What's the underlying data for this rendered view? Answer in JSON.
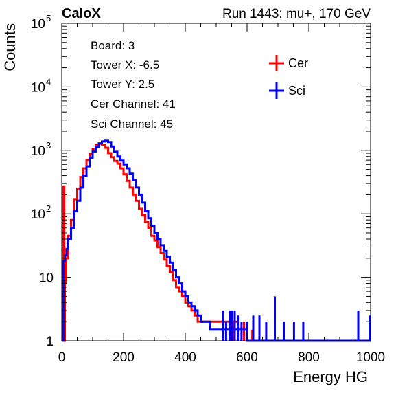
{
  "chart_data": {
    "type": "line",
    "title_left": "CaloX",
    "title_right": "Run 1443: mu+, 170 GeV",
    "xlabel": "Energy HG",
    "ylabel": "Counts",
    "xlim": [
      0,
      1000
    ],
    "ylim": [
      1,
      100000
    ],
    "yscale": "log",
    "x_ticks": [
      "0",
      "200",
      "400",
      "600",
      "800",
      "1000"
    ],
    "y_ticks": [
      {
        "base": "1",
        "exp": ""
      },
      {
        "base": "10",
        "exp": ""
      },
      {
        "base": "10",
        "exp": "2"
      },
      {
        "base": "10",
        "exp": "3"
      },
      {
        "base": "10",
        "exp": "4"
      },
      {
        "base": "10",
        "exp": "5"
      }
    ],
    "info_box": [
      "Board: 3",
      "Tower X: -6.5",
      "Tower Y: 2.5",
      "Cer Channel: 41",
      "Sci Channel: 45"
    ],
    "legend_position": "top-right",
    "series": [
      {
        "name": "Cer",
        "color": "#ff0000",
        "x": [
          2,
          5,
          8,
          10,
          14,
          20,
          30,
          40,
          50,
          60,
          70,
          80,
          90,
          100,
          110,
          120,
          130,
          140,
          150,
          160,
          170,
          180,
          190,
          200,
          210,
          220,
          230,
          240,
          250,
          260,
          270,
          280,
          290,
          300,
          310,
          320,
          330,
          340,
          350,
          360,
          370,
          380,
          390,
          400,
          410,
          420,
          430,
          440,
          450,
          460,
          470,
          480,
          490,
          500,
          510,
          520,
          530,
          540,
          550,
          560,
          570
        ],
        "y": [
          1,
          270,
          1,
          8,
          20,
          45,
          80,
          170,
          250,
          380,
          520,
          700,
          880,
          1050,
          1200,
          1270,
          1230,
          1100,
          900,
          780,
          680,
          620,
          520,
          420,
          330,
          260,
          200,
          160,
          120,
          95,
          75,
          60,
          45,
          38,
          30,
          24,
          19,
          15,
          12,
          9,
          7,
          6,
          5,
          4,
          3.5,
          3,
          2.5,
          2,
          2,
          2,
          2,
          2,
          2,
          2,
          2,
          2,
          2,
          2,
          2,
          2,
          1
        ]
      },
      {
        "name": "Sci",
        "color": "#0000ff",
        "x": [
          0,
          5,
          10,
          15,
          20,
          30,
          40,
          50,
          60,
          70,
          80,
          90,
          100,
          110,
          120,
          130,
          140,
          150,
          160,
          170,
          180,
          190,
          200,
          210,
          220,
          230,
          240,
          250,
          260,
          270,
          280,
          290,
          300,
          310,
          320,
          330,
          340,
          350,
          360,
          370,
          380,
          390,
          400,
          410,
          420,
          430,
          440,
          450,
          460,
          470,
          480,
          490,
          500,
          520,
          540,
          560,
          580,
          600,
          620,
          640,
          660,
          680,
          690,
          700,
          720,
          740,
          760,
          780,
          800,
          820,
          840,
          860,
          880,
          900,
          920,
          940,
          955,
          960,
          980,
          1000
        ],
        "y": [
          1,
          18,
          22,
          28,
          40,
          60,
          110,
          160,
          260,
          400,
          560,
          760,
          960,
          1130,
          1290,
          1380,
          1420,
          1350,
          1150,
          950,
          800,
          690,
          600,
          520,
          430,
          340,
          260,
          200,
          150,
          110,
          85,
          65,
          50,
          40,
          32,
          26,
          21,
          17,
          13,
          10,
          8,
          6,
          5,
          4,
          3.5,
          3,
          2.5,
          2,
          2,
          2,
          1.5,
          1.5,
          1.5,
          1.5,
          1.5,
          1.5,
          1.5,
          1,
          1,
          1,
          1,
          1,
          1,
          1,
          1,
          1,
          1,
          1,
          1,
          1,
          1,
          1,
          1,
          1,
          1,
          1,
          1,
          1,
          1,
          1
        ]
      }
    ],
    "spikes": {
      "Cer": [
        [
          547,
          2
        ],
        [
          552,
          2
        ],
        [
          557,
          2
        ],
        [
          572,
          2
        ],
        [
          590,
          2
        ],
        [
          617,
          1.5
        ]
      ],
      "Sci": [
        [
          522,
          3
        ],
        [
          532,
          2
        ],
        [
          545,
          3
        ],
        [
          552,
          3
        ],
        [
          560,
          3
        ],
        [
          572,
          2.5
        ],
        [
          582,
          2
        ],
        [
          600,
          2
        ],
        [
          620,
          2.5
        ],
        [
          640,
          2.5
        ],
        [
          662,
          2
        ],
        [
          690,
          5
        ],
        [
          720,
          2
        ],
        [
          752,
          2
        ],
        [
          782,
          2
        ],
        [
          960,
          3
        ],
        [
          998,
          2.5
        ]
      ]
    }
  }
}
